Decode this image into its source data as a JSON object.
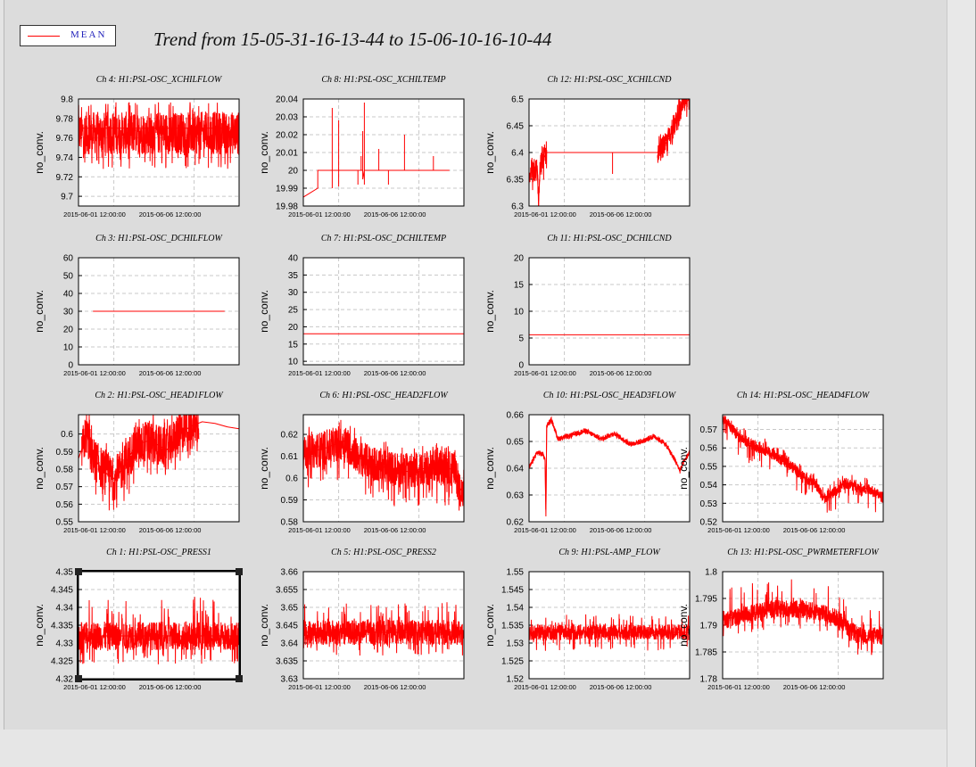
{
  "title": "Trend from 15-05-31-16-13-44 to 15-06-10-16-10-44",
  "legend": {
    "label": "MEAN",
    "color": "#ff0000"
  },
  "selected_panel": "Ch 1: H1:PSL-OSC_PRESS1",
  "chart_data": [
    {
      "type": "line",
      "title": "Ch 4: H1:PSL-OSC_XCHILFLOW",
      "ylabel": "no_conv.",
      "yticks": [
        "9.7",
        "9.72",
        "9.74",
        "9.76",
        "9.78",
        "9.8"
      ],
      "ylim": [
        9.69,
        9.8
      ],
      "xticks": [
        "2015-06-01 12:00:00",
        "2015-06-06 12:00:00"
      ],
      "xlim": [
        0,
        10
      ],
      "series": [
        {
          "values": [
            [
              0,
              9.77
            ],
            [
              10,
              9.77
            ]
          ]
        }
      ],
      "noise": {
        "start": 0,
        "end": 10,
        "mid": 9.765,
        "amp": 0.022,
        "spikeDown": 0.015,
        "spikeUp": 0.01
      }
    },
    {
      "type": "line",
      "title": "Ch 8: H1:PSL-OSC_XCHILTEMP",
      "ylabel": "no_conv.",
      "yticks": [
        "19.98",
        "19.99",
        "20",
        "20.01",
        "20.02",
        "20.03",
        "20.04"
      ],
      "ylim": [
        19.98,
        20.04
      ],
      "xticks": [
        "2015-06-01 12:00:00",
        "2015-06-06 12:00:00"
      ],
      "xlim": [
        0,
        10
      ],
      "series": [
        {
          "values": [
            [
              0,
              19.983
            ],
            [
              0,
              20.009
            ],
            [
              0,
              19.985
            ],
            [
              0.9,
              19.99
            ],
            [
              0.9,
              20
            ],
            [
              1.8,
              20
            ],
            [
              1.8,
              20.035
            ],
            [
              1.8,
              19.99
            ],
            [
              1.8,
              20
            ],
            [
              2.2,
              20
            ],
            [
              2.2,
              20.028
            ],
            [
              2.2,
              19.991
            ],
            [
              2.2,
              20
            ],
            [
              3.4,
              20
            ],
            [
              3.4,
              19.992
            ],
            [
              3.4,
              20
            ],
            [
              3.6,
              20
            ],
            [
              3.6,
              20.008
            ],
            [
              3.6,
              20
            ],
            [
              3.7,
              20
            ],
            [
              3.7,
              20.022
            ],
            [
              3.7,
              19.995
            ],
            [
              3.8,
              20
            ],
            [
              3.8,
              20.038
            ],
            [
              3.8,
              19.992
            ],
            [
              3.8,
              20
            ],
            [
              4.7,
              20
            ],
            [
              4.7,
              20.012
            ],
            [
              4.7,
              20
            ],
            [
              5.3,
              20
            ],
            [
              5.3,
              19.992
            ],
            [
              5.3,
              20
            ],
            [
              6.3,
              20
            ],
            [
              6.3,
              20.02
            ],
            [
              6.3,
              20
            ],
            [
              8.1,
              20
            ],
            [
              8.1,
              20.008
            ],
            [
              8.1,
              20
            ],
            [
              9.1,
              20
            ]
          ]
        }
      ]
    },
    {
      "type": "line",
      "title": "Ch 12: H1:PSL-OSC_XCHILCND",
      "ylabel": "no_conv.",
      "yticks": [
        "6.3",
        "6.35",
        "6.4",
        "6.45",
        "6.5"
      ],
      "ylim": [
        6.3,
        6.5
      ],
      "xticks": [
        "2015-06-01 12:00:00",
        "2015-06-06 12:00:00"
      ],
      "xlim": [
        0,
        10
      ],
      "series": [
        {
          "values": [
            [
              0,
              6.36
            ],
            [
              0.5,
              6.37
            ],
            [
              0.6,
              6.31
            ],
            [
              0.7,
              6.38
            ],
            [
              0.9,
              6.39
            ],
            [
              1.1,
              6.4
            ],
            [
              5.2,
              6.4
            ],
            [
              5.2,
              6.36
            ],
            [
              5.2,
              6.4
            ],
            [
              8,
              6.4
            ],
            [
              8.6,
              6.42
            ],
            [
              9.2,
              6.46
            ],
            [
              9.6,
              6.49
            ],
            [
              10,
              6.5
            ],
            [
              10,
              6.43
            ]
          ]
        }
      ],
      "noise": [
        {
          "start": 0,
          "end": 1.1,
          "mid": 6.375,
          "amp": 0.022,
          "spikeDown": 0.02,
          "spikeUp": 0.005
        },
        {
          "start": 8,
          "end": 10,
          "mid": 6.45,
          "amp": 0.02,
          "slope": 0.045,
          "spikeDown": 0.01,
          "spikeUp": 0.01
        }
      ]
    },
    {
      "type": "line",
      "title": "Ch 3: H1:PSL-OSC_DCHILFLOW",
      "ylabel": "no_conv.",
      "yticks": [
        "0",
        "10",
        "20",
        "30",
        "40",
        "50",
        "60"
      ],
      "ylim": [
        0,
        60
      ],
      "xticks": [
        "2015-06-01 12:00:00",
        "2015-06-06 12:00:00"
      ],
      "xlim": [
        0,
        10
      ],
      "series": [
        {
          "values": [
            [
              0.9,
              30
            ],
            [
              9.1,
              30
            ]
          ]
        }
      ]
    },
    {
      "type": "line",
      "title": "Ch 7: H1:PSL-OSC_DCHILTEMP",
      "ylabel": "no_conv.",
      "yticks": [
        "10",
        "15",
        "20",
        "25",
        "30",
        "35",
        "40"
      ],
      "ylim": [
        9,
        40
      ],
      "xticks": [
        "2015-06-01 12:00:00",
        "2015-06-06 12:00:00"
      ],
      "xlim": [
        0,
        10
      ],
      "series": [
        {
          "values": [
            [
              0,
              18
            ],
            [
              10,
              18
            ]
          ]
        }
      ]
    },
    {
      "type": "line",
      "title": "Ch 11: H1:PSL-OSC_DCHILCND",
      "ylabel": "no_conv.",
      "yticks": [
        "0",
        "5",
        "10",
        "15",
        "20"
      ],
      "ylim": [
        0,
        20
      ],
      "xticks": [
        "2015-06-01 12:00:00",
        "2015-06-06 12:00:00"
      ],
      "xlim": [
        0,
        10
      ],
      "series": [
        {
          "values": [
            [
              0,
              5.6
            ],
            [
              10,
              5.6
            ]
          ]
        }
      ]
    },
    {
      "type": "line",
      "title": "Ch 2: H1:PSL-OSC_HEAD1FLOW",
      "ylabel": "no_conv.",
      "yticks": [
        "0.55",
        "0.56",
        "0.57",
        "0.58",
        "0.59",
        "0.6"
      ],
      "ylim": [
        0.55,
        0.611
      ],
      "xticks": [
        "2015-06-01 12:00:00",
        "2015-06-06 12:00:00"
      ],
      "xlim": [
        0,
        10
      ],
      "series": [
        {
          "values": [
            [
              0,
              0.586
            ],
            [
              0.3,
              0.594
            ],
            [
              0.5,
              0.601
            ],
            [
              0.8,
              0.588
            ],
            [
              1.3,
              0.582
            ],
            [
              1.8,
              0.577
            ],
            [
              2.3,
              0.574
            ],
            [
              2.9,
              0.583
            ],
            [
              3.6,
              0.594
            ],
            [
              4.3,
              0.596
            ],
            [
              4.9,
              0.594
            ],
            [
              5.5,
              0.591
            ],
            [
              6.1,
              0.598
            ],
            [
              6.9,
              0.604
            ],
            [
              7.7,
              0.607
            ],
            [
              8.5,
              0.606
            ],
            [
              9.3,
              0.604
            ],
            [
              10,
              0.603
            ]
          ]
        }
      ],
      "noise": {
        "start": 0.2,
        "end": 7.5,
        "mid": 0.587,
        "amp": 0.012,
        "spikeDown": 0.01,
        "spikeUp": 0.006
      }
    },
    {
      "type": "line",
      "title": "Ch 6: H1:PSL-OSC_HEAD2FLOW",
      "ylabel": "no_conv.",
      "yticks": [
        "0.58",
        "0.59",
        "0.6",
        "0.61",
        "0.62"
      ],
      "ylim": [
        0.58,
        0.629
      ],
      "xticks": [
        "2015-06-01 12:00:00",
        "2015-06-06 12:00:00"
      ],
      "xlim": [
        0,
        10
      ],
      "series": [
        {
          "values": [
            [
              0,
              0.611
            ],
            [
              1.5,
              0.614
            ],
            [
              2.5,
              0.617
            ],
            [
              3.5,
              0.609
            ],
            [
              5,
              0.605
            ],
            [
              6.5,
              0.603
            ],
            [
              8,
              0.605
            ],
            [
              9.4,
              0.604
            ],
            [
              9.7,
              0.596
            ],
            [
              10,
              0.592
            ]
          ]
        }
      ],
      "noise": {
        "start": 0,
        "end": 10,
        "mid": 0.607,
        "amp": 0.008,
        "slope": -0.012,
        "spikeDown": 0.009,
        "spikeUp": 0.004
      }
    },
    {
      "type": "line",
      "title": "Ch 10: H1:PSL-OSC_HEAD3FLOW",
      "ylabel": "no_conv.",
      "yticks": [
        "0.62",
        "0.63",
        "0.64",
        "0.65",
        "0.66"
      ],
      "ylim": [
        0.62,
        0.66
      ],
      "xticks": [
        "2015-06-01 12:00:00",
        "2015-06-06 12:00:00"
      ],
      "xlim": [
        0,
        10
      ],
      "series": [
        {
          "values": [
            [
              0,
              0.64
            ],
            [
              0.5,
              0.646
            ],
            [
              0.9,
              0.645
            ],
            [
              1.0,
              0.643
            ],
            [
              1.05,
              0.622
            ],
            [
              1.1,
              0.656
            ],
            [
              1.4,
              0.658
            ],
            [
              1.8,
              0.651
            ],
            [
              2.5,
              0.652
            ],
            [
              3.5,
              0.654
            ],
            [
              4.5,
              0.651
            ],
            [
              5.3,
              0.653
            ],
            [
              6.3,
              0.649
            ],
            [
              7.0,
              0.65
            ],
            [
              7.8,
              0.652
            ],
            [
              8.5,
              0.649
            ],
            [
              9.1,
              0.643
            ],
            [
              9.4,
              0.639
            ],
            [
              9.6,
              0.642
            ],
            [
              10,
              0.646
            ]
          ]
        }
      ],
      "noise": {
        "start": 0,
        "end": 10,
        "mid": 0.0,
        "amp": 0.001,
        "relative": true
      }
    },
    {
      "type": "line",
      "title": "Ch 14: H1:PSL-OSC_HEAD4FLOW",
      "ylabel": "no_conv.",
      "yticks": [
        "0.52",
        "0.53",
        "0.54",
        "0.55",
        "0.56",
        "0.57"
      ],
      "ylim": [
        0.52,
        0.578
      ],
      "xticks": [
        "2015-06-01 12:00:00",
        "2015-06-06 12:00:00"
      ],
      "xlim": [
        0,
        10
      ],
      "series": [
        {
          "values": [
            [
              0,
              0.576
            ],
            [
              0.5,
              0.571
            ],
            [
              1,
              0.566
            ],
            [
              2,
              0.561
            ],
            [
              3,
              0.557
            ],
            [
              4,
              0.552
            ],
            [
              5,
              0.545
            ],
            [
              5.8,
              0.54
            ],
            [
              6.3,
              0.533
            ],
            [
              7,
              0.536
            ],
            [
              7.6,
              0.541
            ],
            [
              8.3,
              0.539
            ],
            [
              9,
              0.538
            ],
            [
              10,
              0.533
            ]
          ]
        }
      ],
      "noise": {
        "start": 0,
        "end": 10,
        "mid": 0.0,
        "amp": 0.003,
        "relative": true,
        "spikeDown": 0.008,
        "spikeUp": 0.004
      }
    },
    {
      "type": "line",
      "title": "Ch 1: H1:PSL-OSC_PRESS1",
      "ylabel": "no_conv.",
      "yticks": [
        "4.32",
        "4.325",
        "4.33",
        "4.335",
        "4.34",
        "4.345",
        "4.35"
      ],
      "ylim": [
        4.32,
        4.35
      ],
      "xticks": [
        "2015-06-01 12:00:00",
        "2015-06-06 12:00:00"
      ],
      "xlim": [
        0,
        10
      ],
      "series": [
        {
          "values": [
            [
              0,
              4.332
            ],
            [
              10,
              4.332
            ]
          ]
        }
      ],
      "noise": {
        "start": 0,
        "end": 10,
        "mid": 4.332,
        "amp": 0.004,
        "spikeDown": 0.004,
        "spikeUp": 0.007
      }
    },
    {
      "type": "line",
      "title": "Ch 5: H1:PSL-OSC_PRESS2",
      "ylabel": "no_conv.",
      "yticks": [
        "3.63",
        "3.635",
        "3.64",
        "3.645",
        "3.65",
        "3.655",
        "3.66"
      ],
      "ylim": [
        3.63,
        3.66
      ],
      "xticks": [
        "2015-06-01 12:00:00",
        "2015-06-06 12:00:00"
      ],
      "xlim": [
        0,
        10
      ],
      "series": [
        {
          "values": [
            [
              0,
              3.643
            ],
            [
              10,
              3.643
            ]
          ]
        }
      ],
      "noise": {
        "start": 0,
        "end": 10,
        "mid": 3.643,
        "amp": 0.0035,
        "spikeDown": 0.003,
        "spikeUp": 0.005
      }
    },
    {
      "type": "line",
      "title": "Ch 9: H1:PSL-AMP_FLOW",
      "ylabel": "no_conv.",
      "yticks": [
        "1.52",
        "1.525",
        "1.53",
        "1.535",
        "1.54",
        "1.545",
        "1.55"
      ],
      "ylim": [
        1.52,
        1.55
      ],
      "xticks": [
        "2015-06-01 12:00:00",
        "2015-06-06 12:00:00"
      ],
      "xlim": [
        0,
        10
      ],
      "series": [
        {
          "values": [
            [
              0,
              1.533
            ],
            [
              10,
              1.533
            ]
          ]
        }
      ],
      "noise": {
        "start": 0,
        "end": 10,
        "mid": 1.533,
        "amp": 0.0022,
        "spikeDown": 0.003,
        "spikeUp": 0.003
      }
    },
    {
      "type": "line",
      "title": "Ch 13: H1:PSL-OSC_PWRMETERFLOW",
      "ylabel": "no_conv.",
      "yticks": [
        "1.78",
        "1.785",
        "1.79",
        "1.795",
        "1.8"
      ],
      "ylim": [
        1.78,
        1.8
      ],
      "xticks": [
        "2015-06-01 12:00:00",
        "2015-06-06 12:00:00"
      ],
      "xlim": [
        0,
        10
      ],
      "series": [
        {
          "values": [
            [
              0,
              1.791
            ],
            [
              1.5,
              1.792
            ],
            [
              3,
              1.793
            ],
            [
              5,
              1.793
            ],
            [
              6.5,
              1.792
            ],
            [
              7.4,
              1.791
            ],
            [
              8,
              1.789
            ],
            [
              8.5,
              1.788
            ],
            [
              10,
              1.788
            ]
          ]
        }
      ],
      "noise": {
        "start": 0,
        "end": 10,
        "mid": 0.0,
        "amp": 0.0017,
        "relative": true,
        "spikeDown": 0.002,
        "spikeUp": 0.004
      }
    }
  ]
}
